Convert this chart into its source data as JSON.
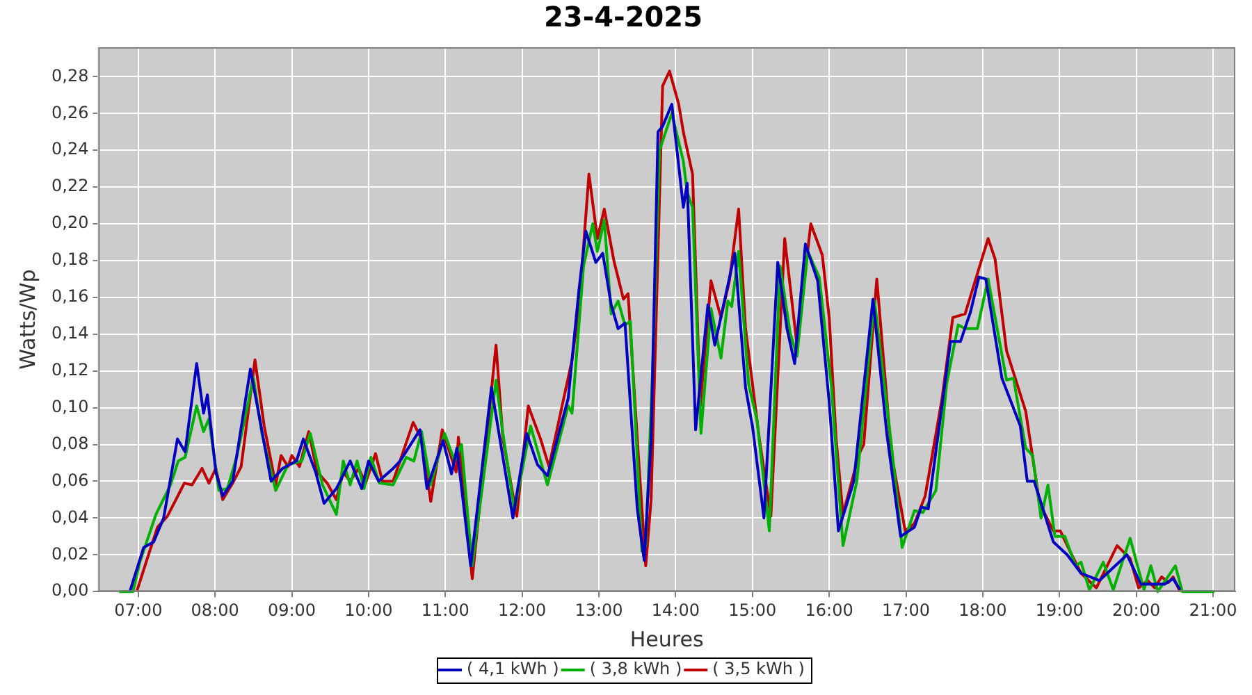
{
  "chart_data": {
    "type": "line",
    "title": "23-4-2025",
    "xlabel": "Heures",
    "ylabel": "Watts/Wp",
    "xlim": [
      6.48,
      21.29
    ],
    "ylim": [
      0,
      0.296
    ],
    "xticks": [
      {
        "value": 7,
        "label": "07:00"
      },
      {
        "value": 8,
        "label": "08:00"
      },
      {
        "value": 9,
        "label": "09:00"
      },
      {
        "value": 10,
        "label": "10:00"
      },
      {
        "value": 11,
        "label": "11:00"
      },
      {
        "value": 12,
        "label": "12:00"
      },
      {
        "value": 13,
        "label": "13:00"
      },
      {
        "value": 14,
        "label": "14:00"
      },
      {
        "value": 15,
        "label": "15:00"
      },
      {
        "value": 16,
        "label": "16:00"
      },
      {
        "value": 17,
        "label": "17:00"
      },
      {
        "value": 18,
        "label": "18:00"
      },
      {
        "value": 19,
        "label": "19:00"
      },
      {
        "value": 20,
        "label": "20:00"
      },
      {
        "value": 21,
        "label": "21:00"
      }
    ],
    "yticks": [
      {
        "value": 0,
        "label": "0,00"
      },
      {
        "value": 0.02,
        "label": "0,02"
      },
      {
        "value": 0.04,
        "label": "0,04"
      },
      {
        "value": 0.06,
        "label": "0,06"
      },
      {
        "value": 0.08,
        "label": "0,08"
      },
      {
        "value": 0.1,
        "label": "0,10"
      },
      {
        "value": 0.12,
        "label": "0,12"
      },
      {
        "value": 0.14,
        "label": "0,14"
      },
      {
        "value": 0.16,
        "label": "0,16"
      },
      {
        "value": 0.18,
        "label": "0,18"
      },
      {
        "value": 0.2,
        "label": "0,20"
      },
      {
        "value": 0.22,
        "label": "0,22"
      },
      {
        "value": 0.24,
        "label": "0,24"
      },
      {
        "value": 0.26,
        "label": "0,26"
      },
      {
        "value": 0.28,
        "label": "0,28"
      }
    ],
    "grid": true,
    "legend": "bottom",
    "line_style": "solid",
    "series": [
      {
        "name": "( 4,1 kWh )",
        "color": "#0000c0",
        "x": [
          6.89,
          7.07,
          7.2,
          7.33,
          7.51,
          7.61,
          7.76,
          7.85,
          7.9,
          8.01,
          8.1,
          8.23,
          8.46,
          8.55,
          8.73,
          8.88,
          9.06,
          9.15,
          9.31,
          9.42,
          9.58,
          9.76,
          9.91,
          10.0,
          10.13,
          10.32,
          10.41,
          10.67,
          10.76,
          10.97,
          11.08,
          11.15,
          11.33,
          11.6,
          11.71,
          11.88,
          12.06,
          12.2,
          12.33,
          12.6,
          12.74,
          12.83,
          12.96,
          13.05,
          13.16,
          13.25,
          13.34,
          13.5,
          13.59,
          13.68,
          13.77,
          13.83,
          13.95,
          14.1,
          14.15,
          14.26,
          14.42,
          14.51,
          14.77,
          14.91,
          15.0,
          15.15,
          15.33,
          15.45,
          15.55,
          15.69,
          15.85,
          16.0,
          16.12,
          16.32,
          16.57,
          16.75,
          16.93,
          17.11,
          17.2,
          17.29,
          17.58,
          17.71,
          17.84,
          17.95,
          18.04,
          18.25,
          18.49,
          18.58,
          18.67,
          18.92,
          19.1,
          19.28,
          19.52,
          19.88,
          20.06,
          20.37,
          20.48,
          20.57
        ],
        "values": [
          0,
          0.024,
          0.027,
          0.04,
          0.083,
          0.076,
          0.124,
          0.097,
          0.107,
          0.065,
          0.052,
          0.06,
          0.121,
          0.101,
          0.06,
          0.067,
          0.071,
          0.083,
          0.065,
          0.048,
          0.056,
          0.071,
          0.056,
          0.071,
          0.06,
          0.067,
          0.071,
          0.088,
          0.056,
          0.082,
          0.064,
          0.078,
          0.014,
          0.111,
          0.083,
          0.04,
          0.086,
          0.069,
          0.063,
          0.105,
          0.164,
          0.196,
          0.179,
          0.184,
          0.156,
          0.143,
          0.146,
          0.045,
          0.017,
          0.083,
          0.25,
          0.253,
          0.265,
          0.209,
          0.222,
          0.088,
          0.156,
          0.134,
          0.184,
          0.111,
          0.09,
          0.04,
          0.179,
          0.143,
          0.124,
          0.189,
          0.169,
          0.103,
          0.033,
          0.06,
          0.159,
          0.086,
          0.03,
          0.035,
          0.046,
          0.045,
          0.136,
          0.136,
          0.152,
          0.171,
          0.17,
          0.116,
          0.09,
          0.06,
          0.06,
          0.027,
          0.02,
          0.01,
          0.006,
          0.02,
          0.004,
          0.004,
          0.007,
          0.001
        ]
      },
      {
        "name": "( 3,8 kWh )",
        "color": "#00b000",
        "x": [
          6.75,
          6.93,
          7.02,
          7.23,
          7.42,
          7.52,
          7.61,
          7.76,
          7.85,
          7.92,
          8.05,
          8.16,
          8.28,
          8.5,
          8.61,
          8.79,
          8.95,
          9.13,
          9.24,
          9.4,
          9.58,
          9.67,
          9.76,
          9.85,
          9.94,
          10.03,
          10.14,
          10.32,
          10.49,
          10.59,
          10.69,
          10.81,
          10.99,
          11.12,
          11.21,
          11.35,
          11.66,
          11.75,
          11.9,
          12.11,
          12.33,
          12.6,
          12.65,
          12.8,
          12.92,
          12.98,
          13.07,
          13.16,
          13.25,
          13.34,
          13.41,
          13.56,
          13.61,
          13.7,
          13.79,
          13.95,
          14.1,
          14.15,
          14.22,
          14.33,
          14.46,
          14.59,
          14.68,
          14.73,
          14.82,
          14.95,
          15.06,
          15.22,
          15.36,
          15.49,
          15.58,
          15.72,
          15.87,
          16.03,
          16.18,
          16.36,
          16.59,
          16.81,
          16.95,
          17.11,
          17.22,
          17.39,
          17.53,
          17.68,
          17.77,
          17.93,
          18.07,
          18.31,
          18.4,
          18.56,
          18.65,
          18.76,
          18.85,
          18.94,
          19.07,
          19.21,
          19.28,
          19.39,
          19.57,
          19.7,
          19.92,
          20.1,
          20.19,
          20.28,
          20.51,
          20.6,
          21.02
        ],
        "values": [
          0,
          0,
          0.016,
          0.042,
          0.058,
          0.071,
          0.073,
          0.101,
          0.087,
          0.094,
          0.055,
          0.056,
          0.073,
          0.116,
          0.086,
          0.055,
          0.069,
          0.071,
          0.086,
          0.058,
          0.042,
          0.071,
          0.058,
          0.071,
          0.056,
          0.073,
          0.059,
          0.058,
          0.073,
          0.071,
          0.087,
          0.058,
          0.086,
          0.071,
          0.08,
          0.014,
          0.115,
          0.086,
          0.044,
          0.09,
          0.058,
          0.101,
          0.097,
          0.177,
          0.2,
          0.185,
          0.202,
          0.151,
          0.158,
          0.145,
          0.147,
          0.022,
          0.025,
          0.121,
          0.24,
          0.26,
          0.234,
          0.217,
          0.209,
          0.086,
          0.154,
          0.127,
          0.158,
          0.155,
          0.185,
          0.113,
          0.093,
          0.033,
          0.177,
          0.141,
          0.128,
          0.185,
          0.171,
          0.111,
          0.025,
          0.06,
          0.158,
          0.08,
          0.024,
          0.044,
          0.043,
          0.055,
          0.113,
          0.145,
          0.143,
          0.143,
          0.17,
          0.115,
          0.116,
          0.078,
          0.074,
          0.04,
          0.058,
          0.03,
          0.03,
          0.014,
          0.016,
          0.001,
          0.016,
          0.001,
          0.029,
          0.001,
          0.014,
          0,
          0.014,
          0,
          0
        ]
      },
      {
        "name": "( 3,5 kWh )",
        "color": "#c00000",
        "x": [
          6.98,
          7.11,
          7.25,
          7.38,
          7.6,
          7.7,
          7.83,
          7.92,
          8.01,
          8.1,
          8.23,
          8.34,
          8.52,
          8.64,
          8.79,
          8.86,
          8.95,
          9.0,
          9.1,
          9.22,
          9.33,
          9.46,
          9.58,
          9.67,
          9.76,
          9.87,
          9.96,
          10.09,
          10.18,
          10.32,
          10.58,
          10.69,
          10.81,
          10.96,
          11.14,
          11.17,
          11.35,
          11.66,
          11.75,
          11.93,
          12.08,
          12.24,
          12.35,
          12.65,
          12.74,
          12.87,
          12.98,
          13.07,
          13.2,
          13.32,
          13.38,
          13.5,
          13.61,
          13.68,
          13.83,
          13.92,
          14.04,
          14.1,
          14.22,
          14.32,
          14.46,
          14.59,
          14.7,
          14.82,
          14.91,
          15.09,
          15.24,
          15.42,
          15.58,
          15.76,
          15.91,
          16.0,
          16.09,
          16.18,
          16.39,
          16.45,
          16.62,
          16.81,
          16.99,
          17.11,
          17.25,
          17.47,
          17.61,
          17.77,
          17.88,
          18.07,
          18.16,
          18.31,
          18.56,
          18.74,
          18.92,
          19.01,
          19.16,
          19.28,
          19.48,
          19.75,
          19.92,
          20.03,
          20.15,
          20.24,
          20.33,
          20.42,
          20.48,
          20.57
        ],
        "values": [
          0,
          0.017,
          0.035,
          0.041,
          0.059,
          0.058,
          0.067,
          0.059,
          0.067,
          0.05,
          0.059,
          0.068,
          0.126,
          0.09,
          0.058,
          0.074,
          0.068,
          0.074,
          0.068,
          0.087,
          0.065,
          0.059,
          0.05,
          0.065,
          0.06,
          0.067,
          0.059,
          0.075,
          0.06,
          0.06,
          0.092,
          0.083,
          0.049,
          0.088,
          0.065,
          0.084,
          0.007,
          0.134,
          0.083,
          0.041,
          0.101,
          0.083,
          0.068,
          0.126,
          0.154,
          0.227,
          0.192,
          0.208,
          0.179,
          0.159,
          0.162,
          0.083,
          0.014,
          0.05,
          0.275,
          0.283,
          0.265,
          0.25,
          0.227,
          0.101,
          0.169,
          0.149,
          0.169,
          0.208,
          0.143,
          0.083,
          0.041,
          0.192,
          0.134,
          0.2,
          0.183,
          0.149,
          0.083,
          0.042,
          0.075,
          0.08,
          0.17,
          0.075,
          0.033,
          0.037,
          0.052,
          0.105,
          0.149,
          0.151,
          0.166,
          0.192,
          0.181,
          0.131,
          0.098,
          0.048,
          0.033,
          0.033,
          0.02,
          0.01,
          0.002,
          0.025,
          0.018,
          0.002,
          0.006,
          0.002,
          0.008,
          0.005,
          0.008,
          0
        ]
      }
    ]
  }
}
